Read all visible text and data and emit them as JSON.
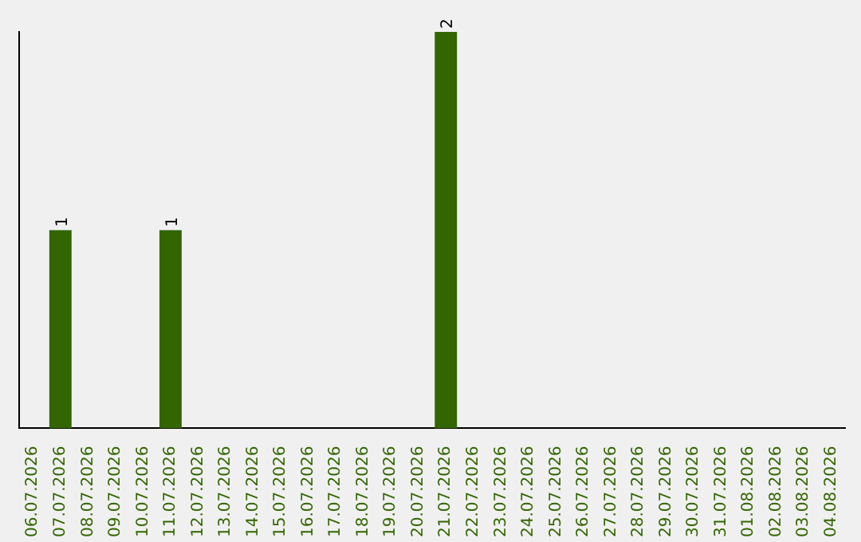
{
  "chart_data": {
    "type": "bar",
    "categories": [
      "06.07.2026",
      "07.07.2026",
      "08.07.2026",
      "09.07.2026",
      "10.07.2026",
      "11.07.2026",
      "12.07.2026",
      "13.07.2026",
      "14.07.2026",
      "15.07.2026",
      "16.07.2026",
      "17.07.2026",
      "18.07.2026",
      "19.07.2026",
      "20.07.2026",
      "21.07.2026",
      "22.07.2026",
      "23.07.2026",
      "24.07.2026",
      "25.07.2026",
      "26.07.2026",
      "27.07.2026",
      "28.07.2026",
      "29.07.2026",
      "30.07.2026",
      "31.07.2026",
      "01.08.2026",
      "02.08.2026",
      "03.08.2026",
      "04.08.2026"
    ],
    "values": [
      0,
      1,
      0,
      0,
      0,
      1,
      0,
      0,
      0,
      0,
      0,
      0,
      0,
      0,
      0,
      2,
      0,
      0,
      0,
      0,
      0,
      0,
      0,
      0,
      0,
      0,
      0,
      0,
      0,
      0
    ],
    "value_labels": [
      null,
      "1",
      null,
      null,
      null,
      "1",
      null,
      null,
      null,
      null,
      null,
      null,
      null,
      null,
      null,
      "2",
      null,
      null,
      null,
      null,
      null,
      null,
      null,
      null,
      null,
      null,
      null,
      null,
      null,
      null
    ],
    "color": "#336600",
    "grid": false,
    "legend": false,
    "tick_labels": "x"
  }
}
